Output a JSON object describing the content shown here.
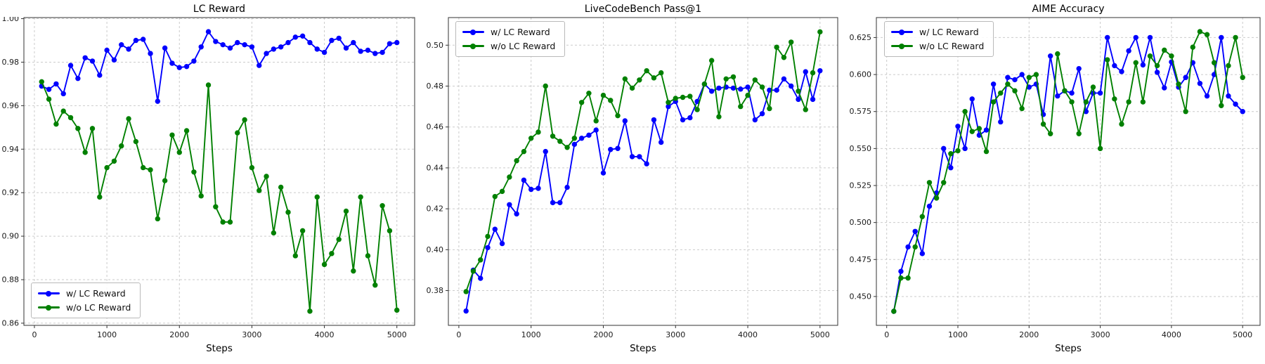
{
  "figure": {
    "background": "#ffffff",
    "grid_color": "#cbcbcb",
    "spine_color": "#333333",
    "tick_label_color": "#1a1a1a"
  },
  "shared": {
    "xlabel": "Steps",
    "x_tick_labels": [
      "0",
      "1000",
      "2000",
      "3000",
      "4000",
      "5000"
    ],
    "xlim": [
      -145,
      5245
    ],
    "steps": [
      100,
      200,
      300,
      400,
      500,
      600,
      700,
      800,
      900,
      1000,
      1100,
      1200,
      1300,
      1400,
      1500,
      1600,
      1700,
      1800,
      1900,
      2000,
      2100,
      2200,
      2300,
      2400,
      2500,
      2600,
      2700,
      2800,
      2900,
      3000,
      3100,
      3200,
      3300,
      3400,
      3500,
      3600,
      3700,
      3800,
      3900,
      4000,
      4100,
      4200,
      4300,
      4400,
      4500,
      4600,
      4700,
      4800,
      4900,
      5000
    ]
  },
  "chart_data": [
    {
      "type": "line",
      "title": "LC Reward",
      "xlabel": "Steps",
      "ylim": [
        0.859,
        1.0005
      ],
      "ytick_labels": [
        "0.86",
        "0.88",
        "0.90",
        "0.92",
        "0.94",
        "0.96",
        "0.98",
        "1.00"
      ],
      "legend_position": "lower left",
      "series": [
        {
          "name": "w/ LC Reward",
          "color": "#0000ff",
          "values": [
            0.969,
            0.9675,
            0.97,
            0.9655,
            0.9785,
            0.9725,
            0.982,
            0.9805,
            0.974,
            0.9855,
            0.981,
            0.988,
            0.986,
            0.99,
            0.9905,
            0.984,
            0.962,
            0.9865,
            0.9795,
            0.9775,
            0.978,
            0.9805,
            0.987,
            0.994,
            0.9895,
            0.988,
            0.9865,
            0.989,
            0.988,
            0.987,
            0.9785,
            0.984,
            0.986,
            0.987,
            0.989,
            0.9915,
            0.992,
            0.989,
            0.986,
            0.9845,
            0.99,
            0.991,
            0.9865,
            0.989,
            0.985,
            0.9855,
            0.984,
            0.9845,
            0.9885,
            0.989
          ]
        },
        {
          "name": "w/o LC Reward",
          "color": "#008000",
          "values": [
            0.971,
            0.963,
            0.9515,
            0.9575,
            0.9545,
            0.9495,
            0.9385,
            0.9495,
            0.918,
            0.9315,
            0.9345,
            0.9415,
            0.954,
            0.9435,
            0.9315,
            0.9305,
            0.908,
            0.9255,
            0.9465,
            0.9385,
            0.9485,
            0.9295,
            0.9185,
            0.9695,
            0.9135,
            0.9065,
            0.9065,
            0.9475,
            0.9535,
            0.9315,
            0.921,
            0.9275,
            0.9015,
            0.9225,
            0.911,
            0.891,
            0.9025,
            0.8655,
            0.918,
            0.887,
            0.892,
            0.8985,
            0.9115,
            0.884,
            0.918,
            0.891,
            0.8775,
            0.914,
            0.9025,
            0.866
          ]
        }
      ]
    },
    {
      "type": "line",
      "title": "LiveCodeBench Pass@1",
      "xlabel": "Steps",
      "ylim": [
        0.363,
        0.5135
      ],
      "ytick_labels": [
        "0.38",
        "0.40",
        "0.42",
        "0.44",
        "0.46",
        "0.48",
        "0.50"
      ],
      "legend_position": "upper left",
      "series": [
        {
          "name": "w/ LC Reward",
          "color": "#0000ff",
          "values": [
            0.37,
            0.39,
            0.386,
            0.401,
            0.41,
            0.403,
            0.422,
            0.4175,
            0.434,
            0.4295,
            0.43,
            0.448,
            0.423,
            0.423,
            0.4305,
            0.4515,
            0.4545,
            0.456,
            0.4585,
            0.4375,
            0.449,
            0.4495,
            0.463,
            0.4455,
            0.4455,
            0.442,
            0.4635,
            0.4525,
            0.47,
            0.4725,
            0.4635,
            0.4645,
            0.4725,
            0.481,
            0.4775,
            0.479,
            0.4795,
            0.479,
            0.4785,
            0.4795,
            0.4635,
            0.4665,
            0.478,
            0.478,
            0.4835,
            0.48,
            0.4735,
            0.487,
            0.4735,
            0.4875
          ]
        },
        {
          "name": "w/o LC Reward",
          "color": "#008000",
          "values": [
            0.3795,
            0.3895,
            0.395,
            0.4065,
            0.426,
            0.4285,
            0.4355,
            0.4435,
            0.448,
            0.4545,
            0.4575,
            0.48,
            0.4555,
            0.453,
            0.45,
            0.4545,
            0.472,
            0.4765,
            0.463,
            0.4755,
            0.473,
            0.4655,
            0.4835,
            0.479,
            0.483,
            0.4875,
            0.484,
            0.4865,
            0.472,
            0.474,
            0.4745,
            0.475,
            0.4685,
            0.481,
            0.4925,
            0.465,
            0.4835,
            0.4845,
            0.47,
            0.4755,
            0.483,
            0.4795,
            0.469,
            0.499,
            0.494,
            0.5015,
            0.4775,
            0.4685,
            0.4865,
            0.5065
          ]
        }
      ]
    },
    {
      "type": "line",
      "title": "AIME Accuracy",
      "xlabel": "Steps",
      "ylim": [
        0.4305,
        0.6385
      ],
      "ytick_labels": [
        "0.450",
        "0.475",
        "0.500",
        "0.525",
        "0.550",
        "0.575",
        "0.600",
        "0.625"
      ],
      "legend_position": "upper left",
      "series": [
        {
          "name": "w/ LC Reward",
          "color": "#0000ff",
          "values": [
            0.44,
            0.467,
            0.4835,
            0.494,
            0.479,
            0.511,
            0.52,
            0.55,
            0.537,
            0.565,
            0.55,
            0.5835,
            0.559,
            0.5625,
            0.5935,
            0.568,
            0.598,
            0.5965,
            0.6,
            0.5915,
            0.5935,
            0.573,
            0.6125,
            0.5855,
            0.589,
            0.5875,
            0.604,
            0.575,
            0.5875,
            0.5875,
            0.625,
            0.606,
            0.602,
            0.616,
            0.625,
            0.6065,
            0.625,
            0.6015,
            0.591,
            0.6085,
            0.5915,
            0.598,
            0.608,
            0.594,
            0.5855,
            0.6,
            0.625,
            0.5855,
            0.58,
            0.575
          ]
        },
        {
          "name": "w/o LC Reward",
          "color": "#008000",
          "values": [
            0.44,
            0.4625,
            0.4625,
            0.4835,
            0.504,
            0.527,
            0.5165,
            0.527,
            0.5465,
            0.5485,
            0.575,
            0.5615,
            0.5635,
            0.548,
            0.5815,
            0.5875,
            0.5935,
            0.589,
            0.577,
            0.598,
            0.6,
            0.5665,
            0.56,
            0.614,
            0.589,
            0.5815,
            0.56,
            0.5815,
            0.5915,
            0.55,
            0.61,
            0.5835,
            0.5665,
            0.5815,
            0.608,
            0.5815,
            0.6125,
            0.606,
            0.6165,
            0.6125,
            0.5935,
            0.575,
            0.6185,
            0.629,
            0.627,
            0.608,
            0.579,
            0.606,
            0.625,
            0.598
          ]
        }
      ]
    }
  ]
}
